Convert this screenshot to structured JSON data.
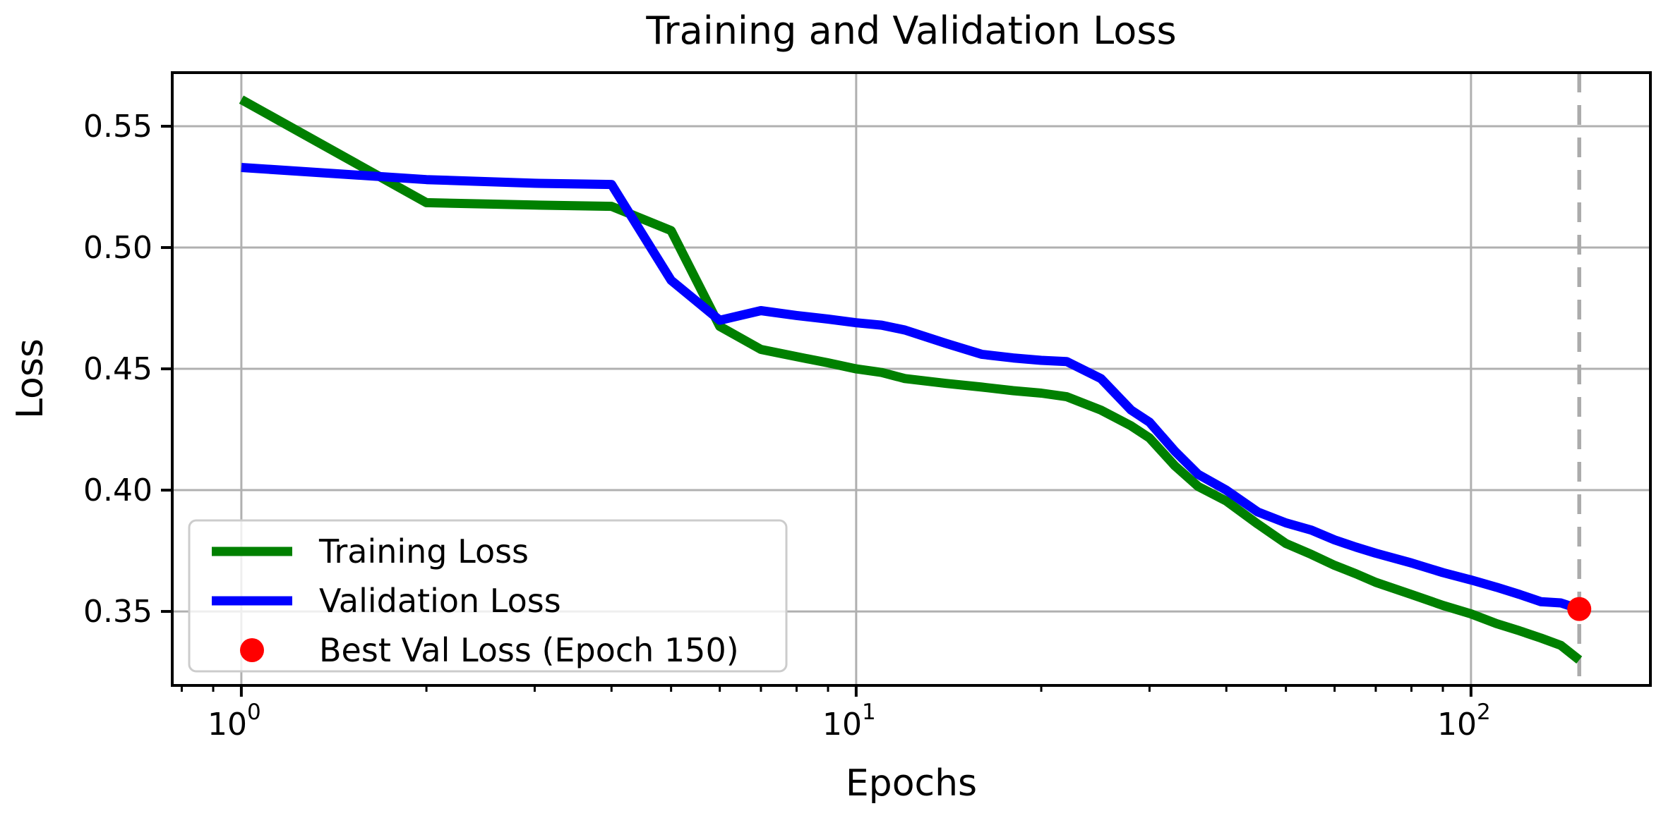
{
  "chart_data": {
    "type": "line",
    "title": "Training and Validation Loss",
    "xlabel": "Epochs",
    "ylabel": "Loss",
    "x_scale": "log",
    "grid": true,
    "legend_position": "lower left",
    "xlim": [
      0.772,
      195.8
    ],
    "ylim": [
      0.3195,
      0.5721
    ],
    "x_ticks": [
      {
        "value": 1,
        "base": "10",
        "exponent": "0"
      },
      {
        "value": 10,
        "base": "10",
        "exponent": "1"
      },
      {
        "value": 100,
        "base": "10",
        "exponent": "2"
      }
    ],
    "x_minor_ticks": [
      0.8,
      0.9,
      2,
      3,
      4,
      5,
      6,
      7,
      8,
      9,
      20,
      30,
      40,
      50,
      60,
      70,
      80,
      90
    ],
    "y_ticks": [
      {
        "value": 0.35,
        "label": "0.35"
      },
      {
        "value": 0.4,
        "label": "0.40"
      },
      {
        "value": 0.45,
        "label": "0.45"
      },
      {
        "value": 0.5,
        "label": "0.50"
      },
      {
        "value": 0.55,
        "label": "0.55"
      }
    ],
    "colors": {
      "training": "#008000",
      "validation": "#0000ff",
      "best_point": "#ff0000",
      "grid": "#b0b0b0",
      "vline": "#ababab",
      "legend_border": "#cccccc"
    },
    "epochs": [
      1,
      2,
      3,
      4,
      5,
      6,
      7,
      8,
      9,
      10,
      11,
      12,
      14,
      16,
      18,
      20,
      22,
      25,
      28,
      30,
      33,
      36,
      40,
      45,
      50,
      55,
      60,
      65,
      70,
      80,
      90,
      100,
      110,
      120,
      130,
      140,
      150
    ],
    "series": [
      {
        "name": "Training Loss",
        "color": "#008000",
        "values": [
          0.561,
          0.5185,
          0.5175,
          0.517,
          0.507,
          0.4675,
          0.458,
          0.455,
          0.4525,
          0.45,
          0.4485,
          0.446,
          0.444,
          0.4425,
          0.441,
          0.44,
          0.4385,
          0.433,
          0.4265,
          0.4215,
          0.41,
          0.4015,
          0.3955,
          0.386,
          0.378,
          0.3735,
          0.369,
          0.3655,
          0.362,
          0.357,
          0.3525,
          0.349,
          0.345,
          0.342,
          0.339,
          0.336,
          0.33
        ]
      },
      {
        "name": "Validation Loss",
        "color": "#0000ff",
        "values": [
          0.533,
          0.528,
          0.5265,
          0.526,
          0.4865,
          0.47,
          0.474,
          0.472,
          0.4705,
          0.469,
          0.468,
          0.466,
          0.4605,
          0.456,
          0.4545,
          0.4535,
          0.453,
          0.446,
          0.433,
          0.428,
          0.416,
          0.4065,
          0.4,
          0.391,
          0.3865,
          0.3835,
          0.3795,
          0.3765,
          0.374,
          0.37,
          0.366,
          0.363,
          0.36,
          0.357,
          0.354,
          0.3535,
          0.351
        ]
      }
    ],
    "best_point": {
      "label": "Best Val Loss (Epoch 150)",
      "epoch": 150,
      "loss": 0.351,
      "color": "#ff0000"
    },
    "vline": {
      "x": 150,
      "style": "dashed",
      "color": "#ababab"
    }
  }
}
